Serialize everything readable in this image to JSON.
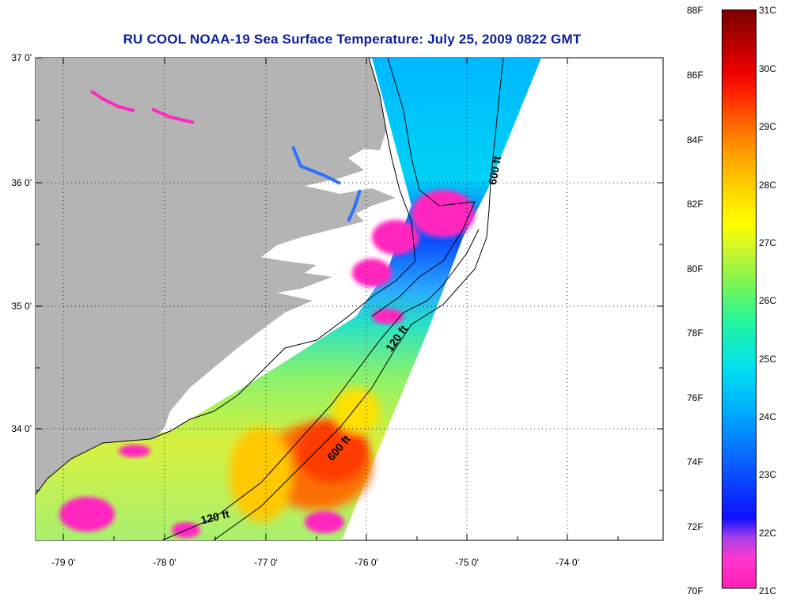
{
  "title": "RU COOL  NOAA-19  Sea Surface Temperature:  July 25, 2009 0822 GMT",
  "axes": {
    "lat_labels": [
      "37 0'",
      "36 0'",
      "35 0'",
      "34 0'"
    ],
    "lon_labels": [
      "-79 0'",
      "-78 0'",
      "-77 0'",
      "-76 0'",
      "-75 0'",
      "-74 0'"
    ]
  },
  "contours": {
    "isobath_120": "120 ft",
    "isobath_600": "600 ft"
  },
  "colorbar": {
    "fahrenheit_labels": [
      "88F",
      "86F",
      "84F",
      "82F",
      "80F",
      "78F",
      "76F",
      "74F",
      "72F",
      "70F"
    ],
    "celsius_labels": [
      "31C",
      "30C",
      "29C",
      "28C",
      "27C",
      "26C",
      "25C",
      "24C",
      "23C",
      "22C",
      "21C"
    ]
  },
  "colors": {
    "land": "#b4b4b4",
    "no_data": "#ffffff",
    "title": "#0a1e9c",
    "cold": "#ff1fb4",
    "warm": "#7a0000"
  }
}
